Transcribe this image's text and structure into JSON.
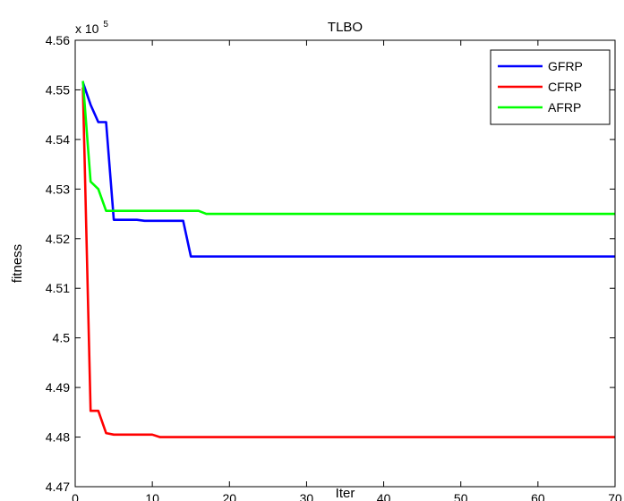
{
  "chart_data": {
    "type": "line",
    "title": "TLBO",
    "xlabel": "Iter",
    "ylabel": "fitness",
    "exponent_label": "x 10",
    "exponent_power": "5",
    "xlim": [
      0,
      70
    ],
    "ylim": [
      4.47,
      4.56
    ],
    "xticks": [
      0,
      10,
      20,
      30,
      40,
      50,
      60,
      70
    ],
    "yticks": [
      4.47,
      4.48,
      4.49,
      4.5,
      4.51,
      4.52,
      4.53,
      4.54,
      4.55,
      4.56
    ],
    "grid": false,
    "legend_position": "top-right",
    "series": [
      {
        "name": "GFRP",
        "color": "#0000ff",
        "points": [
          [
            1,
            4.5515
          ],
          [
            2,
            4.547
          ],
          [
            3,
            4.5435
          ],
          [
            4,
            4.5435
          ],
          [
            5,
            4.5238
          ],
          [
            6,
            4.5238
          ],
          [
            7,
            4.5238
          ],
          [
            8,
            4.5238
          ],
          [
            9,
            4.5236
          ],
          [
            10,
            4.5236
          ],
          [
            11,
            4.5236
          ],
          [
            12,
            4.5236
          ],
          [
            13,
            4.5236
          ],
          [
            14,
            4.5236
          ],
          [
            15,
            4.5164
          ],
          [
            70,
            4.5164
          ]
        ]
      },
      {
        "name": "CFRP",
        "color": "#ff0000",
        "points": [
          [
            1,
            4.5505
          ],
          [
            2,
            4.4853
          ],
          [
            3,
            4.4853
          ],
          [
            4,
            4.4808
          ],
          [
            5,
            4.4805
          ],
          [
            6,
            4.4805
          ],
          [
            7,
            4.4805
          ],
          [
            8,
            4.4805
          ],
          [
            9,
            4.4805
          ],
          [
            10,
            4.4805
          ],
          [
            11,
            4.48
          ],
          [
            70,
            4.48
          ]
        ]
      },
      {
        "name": "AFRP",
        "color": "#00ff00",
        "points": [
          [
            1,
            4.5518
          ],
          [
            2,
            4.5315
          ],
          [
            3,
            4.53
          ],
          [
            4,
            4.5256
          ],
          [
            5,
            4.5256
          ],
          [
            6,
            4.5256
          ],
          [
            7,
            4.5256
          ],
          [
            8,
            4.5256
          ],
          [
            9,
            4.5256
          ],
          [
            10,
            4.5256
          ],
          [
            11,
            4.5256
          ],
          [
            12,
            4.5256
          ],
          [
            13,
            4.5256
          ],
          [
            14,
            4.5256
          ],
          [
            15,
            4.5256
          ],
          [
            16,
            4.5256
          ],
          [
            17,
            4.525
          ],
          [
            70,
            4.525
          ]
        ]
      }
    ]
  }
}
